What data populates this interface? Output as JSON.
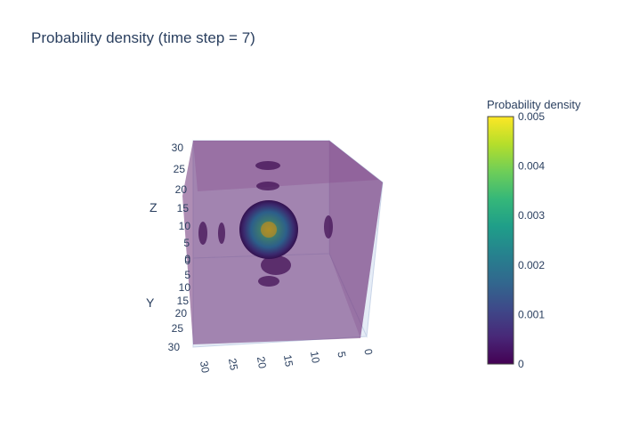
{
  "chart_data": {
    "type": "isosurface",
    "title": "Probability density (time step = 7)",
    "axes": {
      "x": {
        "title": "",
        "ticks": [
          "0",
          "5",
          "10",
          "15",
          "20",
          "25",
          "30"
        ],
        "range": [
          0,
          30
        ]
      },
      "y": {
        "title": "Y",
        "ticks": [
          "0",
          "5",
          "10",
          "15",
          "20",
          "25",
          "30"
        ],
        "range": [
          0,
          30
        ]
      },
      "z": {
        "title": "Z",
        "ticks": [
          "0",
          "5",
          "10",
          "15",
          "20",
          "25",
          "30"
        ],
        "range": [
          0,
          30
        ]
      }
    },
    "colorbar": {
      "title": "Probability density",
      "range": [
        0,
        0.005
      ],
      "ticks": [
        "0",
        "0.001",
        "0.002",
        "0.003",
        "0.004",
        "0.005"
      ],
      "colorscale": [
        "#440154",
        "#482878",
        "#3e4989",
        "#31688e",
        "#26828e",
        "#1f9e89",
        "#35b779",
        "#6ece58",
        "#b5de2b",
        "#fde725"
      ]
    },
    "peak": {
      "x": 15,
      "y": 15,
      "z": 10,
      "value": 0.005
    }
  }
}
